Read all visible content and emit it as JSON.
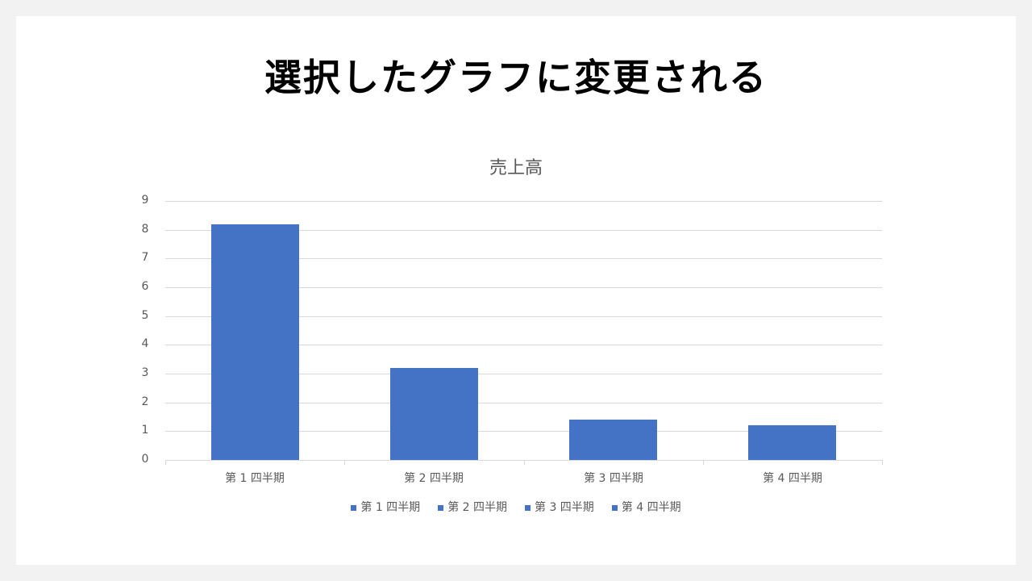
{
  "slide": {
    "title": "選択したグラフに変更される"
  },
  "colors": {
    "bar": "#4472c4",
    "grid": "#d9d9d9",
    "text": "#595959"
  },
  "chart_data": {
    "type": "bar",
    "title": "売上高",
    "categories": [
      "第 1 四半期",
      "第 2 四半期",
      "第 3 四半期",
      "第 4 四半期"
    ],
    "series": [
      {
        "name": "売上高",
        "values": [
          8.2,
          3.2,
          1.4,
          1.2
        ],
        "color": "#4472c4"
      }
    ],
    "xlabel": "",
    "ylabel": "",
    "ylim": [
      0,
      9
    ],
    "yticks": [
      "0",
      "1",
      "2",
      "3",
      "4",
      "5",
      "6",
      "7",
      "8",
      "9"
    ],
    "grid": true,
    "legend": {
      "position": "bottom",
      "entries": [
        "第 1 四半期",
        "第 2 四半期",
        "第 3 四半期",
        "第 4 四半期"
      ]
    }
  }
}
